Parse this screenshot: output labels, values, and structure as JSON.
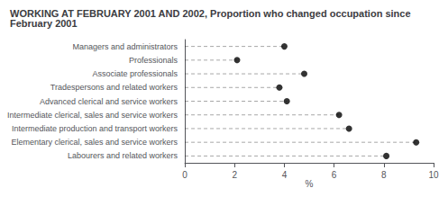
{
  "chart_data": {
    "type": "dot",
    "title": "WORKING AT FEBRUARY 2001 AND 2002, Proportion who changed occupation since February 2001",
    "categories": [
      "Managers and administrators",
      "Professionals",
      "Associate professionals",
      "Tradespersons and related workers",
      "Advanced clerical and service workers",
      "Intermediate clerical, sales and service workers",
      "Intermediate production and transport workers",
      "Elementary clerical, sales and service workers",
      "Labourers and related workers"
    ],
    "values": [
      4.0,
      2.1,
      4.8,
      3.8,
      4.1,
      6.2,
      6.6,
      9.3,
      8.1
    ],
    "orientation": "horizontal",
    "color": "#000000",
    "line_style": "dashed",
    "xlabel": "%",
    "xlim": [
      0,
      10
    ],
    "xticks": [
      0,
      2,
      4,
      6,
      8,
      10
    ],
    "grid": false
  }
}
